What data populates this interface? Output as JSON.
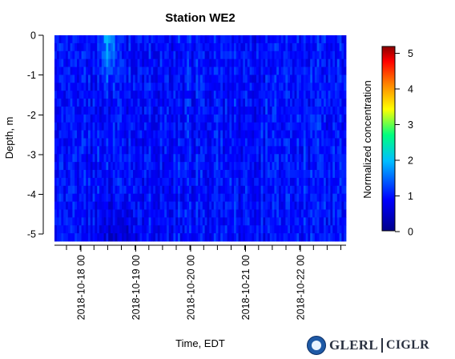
{
  "chart_data": {
    "type": "heatmap",
    "title": "Station WE2",
    "xlabel": "Time, EDT",
    "ylabel": "Depth, m",
    "colorbar_label": "Normalized concentration",
    "x_ticks": [
      "2018-10-18 00",
      "2018-10-19 00",
      "2018-10-20 00",
      "2018-10-21 00",
      "2018-10-22 00"
    ],
    "y_ticks": [
      "0",
      "-1",
      "-2",
      "-3",
      "-4",
      "-5"
    ],
    "ylim": [
      -5.2,
      0.05
    ],
    "colorbar_ticks": [
      "0",
      "1",
      "2",
      "3",
      "4",
      "5"
    ],
    "colorbar_range": [
      0,
      5.1
    ],
    "colormap": [
      "#00008b",
      "#0000ff",
      "#00bfff",
      "#00ff7f",
      "#ffff00",
      "#ff7f00",
      "#ff0000",
      "#8b0000"
    ],
    "value_summary": {
      "typical": 0.9,
      "min": 0.3,
      "max": 1.9,
      "near_surface_peak_time": "2018-10-18 10",
      "near_bottom_low_time": "2018-10-18 18"
    }
  },
  "logos": {
    "noaa": "noaa-icon",
    "glerl": "GLERL",
    "ciglr": "CIGLR"
  }
}
